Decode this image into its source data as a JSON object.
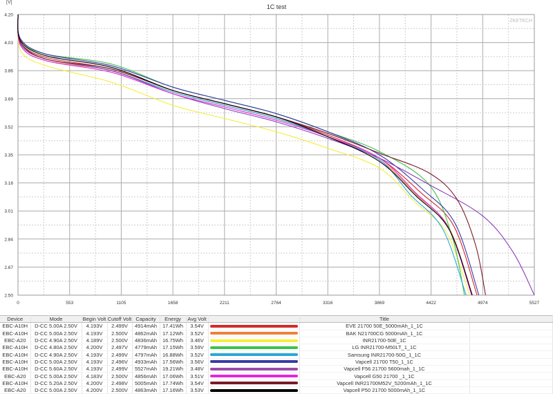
{
  "chart_data": {
    "type": "line",
    "title": "1C test",
    "ylabel": "[V]",
    "xlabel": "",
    "watermark": "ZKETECH",
    "xlim": [
      0,
      5527
    ],
    "ylim": [
      2.5,
      4.2
    ],
    "xticks": [
      "0",
      "553",
      "1105",
      "1658",
      "2211",
      "2764",
      "3316",
      "3869",
      "4422",
      "4974",
      "5527"
    ],
    "yticks": [
      "4.20",
      "4.03",
      "3.86",
      "3.69",
      "3.52",
      "3.35",
      "3.18",
      "3.01",
      "2.84",
      "2.67",
      "2.50"
    ],
    "grid": true,
    "series": [
      {
        "name": "EVE 21700 50E_5000mAh_1_1C",
        "color": "#d42a2a",
        "x": [
          0,
          30,
          300,
          1000,
          1658,
          2211,
          2764,
          3316,
          3869,
          4314,
          4664,
          4914
        ],
        "y": [
          4.2,
          4.03,
          3.94,
          3.87,
          3.74,
          3.66,
          3.58,
          3.47,
          3.33,
          3.12,
          2.92,
          2.5
        ]
      },
      {
        "name": "BAK N21700CG 5000mAh_1_1C",
        "color": "#f07f3a",
        "x": [
          0,
          30,
          300,
          1000,
          1658,
          2211,
          2764,
          3316,
          3869,
          4262,
          4612,
          4862
        ],
        "y": [
          4.2,
          4.01,
          3.92,
          3.86,
          3.73,
          3.65,
          3.57,
          3.46,
          3.32,
          3.11,
          2.91,
          2.5
        ]
      },
      {
        "name": "INR21700-50E_1C",
        "color": "#f4ef3a",
        "x": [
          0,
          30,
          300,
          1000,
          1658,
          2211,
          2764,
          3316,
          3869,
          4236,
          4586,
          4836
        ],
        "y": [
          4.2,
          3.98,
          3.89,
          3.79,
          3.65,
          3.57,
          3.49,
          3.39,
          3.27,
          3.07,
          2.88,
          2.5
        ]
      },
      {
        "name": "LG INR21700-M50LT_1_1C",
        "color": "#3cc24a",
        "x": [
          0,
          30,
          300,
          1000,
          1658,
          2211,
          2764,
          3316,
          3869,
          4400,
          4650,
          4779
        ],
        "y": [
          4.2,
          4.04,
          3.96,
          3.9,
          3.76,
          3.68,
          3.6,
          3.49,
          3.37,
          3.17,
          2.85,
          2.5
        ]
      },
      {
        "name": "Samsung INR21700-50G_1_1C",
        "color": "#2aa8d8",
        "x": [
          0,
          30,
          300,
          1000,
          1658,
          2211,
          2764,
          3316,
          3869,
          4197,
          4547,
          4797
        ],
        "y": [
          4.2,
          4.02,
          3.93,
          3.86,
          3.73,
          3.65,
          3.57,
          3.46,
          3.32,
          3.11,
          2.9,
          2.5
        ]
      },
      {
        "name": "Vapcell 21700 T50_1_1C",
        "color": "#3a3aa8",
        "x": [
          0,
          30,
          300,
          1000,
          1658,
          2211,
          2764,
          3316,
          3869,
          4333,
          4683,
          4933
        ],
        "y": [
          4.2,
          4.05,
          3.96,
          3.89,
          3.76,
          3.68,
          3.6,
          3.49,
          3.35,
          3.14,
          2.93,
          2.5
        ]
      },
      {
        "name": "Vapcell F56 21700 5600mah_1_1C",
        "color": "#8a3ab8",
        "x": [
          0,
          30,
          300,
          1000,
          1658,
          2211,
          2764,
          3316,
          3869,
          4400,
          4974,
          5300,
          5527
        ],
        "y": [
          4.2,
          4.02,
          3.93,
          3.86,
          3.72,
          3.63,
          3.55,
          3.45,
          3.33,
          3.17,
          2.98,
          2.76,
          2.5
        ]
      },
      {
        "name": "Vapcell G50 21700 _1_1C",
        "color": "#e02ad8",
        "x": [
          0,
          30,
          300,
          1000,
          1658,
          2211,
          2764,
          3316,
          3869,
          4256,
          4606,
          4856
        ],
        "y": [
          4.2,
          4.01,
          3.92,
          3.85,
          3.72,
          3.64,
          3.56,
          3.46,
          3.33,
          3.12,
          2.91,
          2.5
        ]
      },
      {
        "name": "Vapcell INR21700M52V_5200mAh_1_1C",
        "color": "#7a1a2a",
        "x": [
          0,
          30,
          300,
          1000,
          1658,
          2211,
          2764,
          3316,
          3869,
          4400,
          4700,
          4900,
          5005
        ],
        "y": [
          4.2,
          4.03,
          3.93,
          3.87,
          3.74,
          3.66,
          3.58,
          3.48,
          3.36,
          3.24,
          3.08,
          2.8,
          2.5
        ]
      },
      {
        "name": "Vapcell P50 21700 5000mAh_1_1C",
        "color": "#000000",
        "x": [
          0,
          30,
          300,
          1000,
          1658,
          2211,
          2764,
          3316,
          3869,
          4263,
          4613,
          4863
        ],
        "y": [
          4.2,
          4.04,
          3.95,
          3.88,
          3.74,
          3.66,
          3.58,
          3.46,
          3.31,
          3.1,
          2.9,
          2.5
        ]
      }
    ]
  },
  "table": {
    "headers": {
      "device": "Device",
      "mode": "Mode",
      "begin": "Begin Volt",
      "cutoff": "Cutoff Volt",
      "capacity": "Capacity",
      "energy": "Energy",
      "avg": "Avg Volt",
      "title": "Title"
    },
    "rows": [
      {
        "device": "EBC-A10H",
        "mode": "D-CC  5.00A  2.50V",
        "begin": "4.193V",
        "cutoff": "2.499V",
        "capacity": "4914mAh",
        "energy": "17.41Wh",
        "avg": "3.54V",
        "color": "#d42a2a",
        "title": "EVE 21700 50E_5000mAh_1_1C"
      },
      {
        "device": "EBC-A10H",
        "mode": "D-CC  5.00A  2.50V",
        "begin": "4.193V",
        "cutoff": "2.500V",
        "capacity": "4862mAh",
        "energy": "17.12Wh",
        "avg": "3.52V",
        "color": "#f07f3a",
        "title": "BAK N21700CG 5000mAh_1_1C"
      },
      {
        "device": "EBC-A20",
        "mode": "D-CC  4.90A  2.50V",
        "begin": "4.189V",
        "cutoff": "2.500V",
        "capacity": "4836mAh",
        "energy": "16.75Wh",
        "avg": "3.46V",
        "color": "#f4ef3a",
        "title": "INR21700-50E_1C"
      },
      {
        "device": "EBC-A10H",
        "mode": "D-CC  4.80A  2.50V",
        "begin": "4.200V",
        "cutoff": "2.497V",
        "capacity": "4779mAh",
        "energy": "17.15Wh",
        "avg": "3.59V",
        "color": "#3cc24a",
        "title": "LG INR21700-M50LT_1_1C"
      },
      {
        "device": "EBC-A10H",
        "mode": "D-CC  4.90A  2.50V",
        "begin": "4.193V",
        "cutoff": "2.499V",
        "capacity": "4797mAh",
        "energy": "16.88Wh",
        "avg": "3.52V",
        "color": "#2aa8d8",
        "title": "Samsung INR21700-50G_1_1C"
      },
      {
        "device": "EBC-A10H",
        "mode": "D-CC  5.00A  2.50V",
        "begin": "4.193V",
        "cutoff": "2.496V",
        "capacity": "4933mAh",
        "energy": "17.56Wh",
        "avg": "3.56V",
        "color": "#3a3aa8",
        "title": "Vapcell 21700 T50_1_1C"
      },
      {
        "device": "EBC-A10H",
        "mode": "D-CC  5.60A  2.50V",
        "begin": "4.193V",
        "cutoff": "2.499V",
        "capacity": "5527mAh",
        "energy": "19.21Wh",
        "avg": "3.48V",
        "color": "#9a4aa8",
        "title": "Vapcell F56 21700 5600mah_1_1C"
      },
      {
        "device": "EBC-A20",
        "mode": "D-CC  5.00A  2.50V",
        "begin": "4.183V",
        "cutoff": "2.500V",
        "capacity": "4856mAh",
        "energy": "17.06Wh",
        "avg": "3.51V",
        "color": "#e02ad8",
        "title": "Vapcell G50 21700 _1_1C"
      },
      {
        "device": "EBC-A10H",
        "mode": "D-CC  5.20A  2.50V",
        "begin": "4.200V",
        "cutoff": "2.498V",
        "capacity": "5005mAh",
        "energy": "17.74Wh",
        "avg": "3.54V",
        "color": "#7a1a2a",
        "title": "Vapcell INR21700M52V_5200mAh_1_1C"
      },
      {
        "device": "EBC-A20",
        "mode": "D-CC  5.00A  2.50V",
        "begin": "4.200V",
        "cutoff": "2.500V",
        "capacity": "4863mAh",
        "energy": "17.16Wh",
        "avg": "3.53V",
        "color": "#000000",
        "title": "Vapcell P50 21700 5000mAh_1_1C"
      }
    ]
  }
}
